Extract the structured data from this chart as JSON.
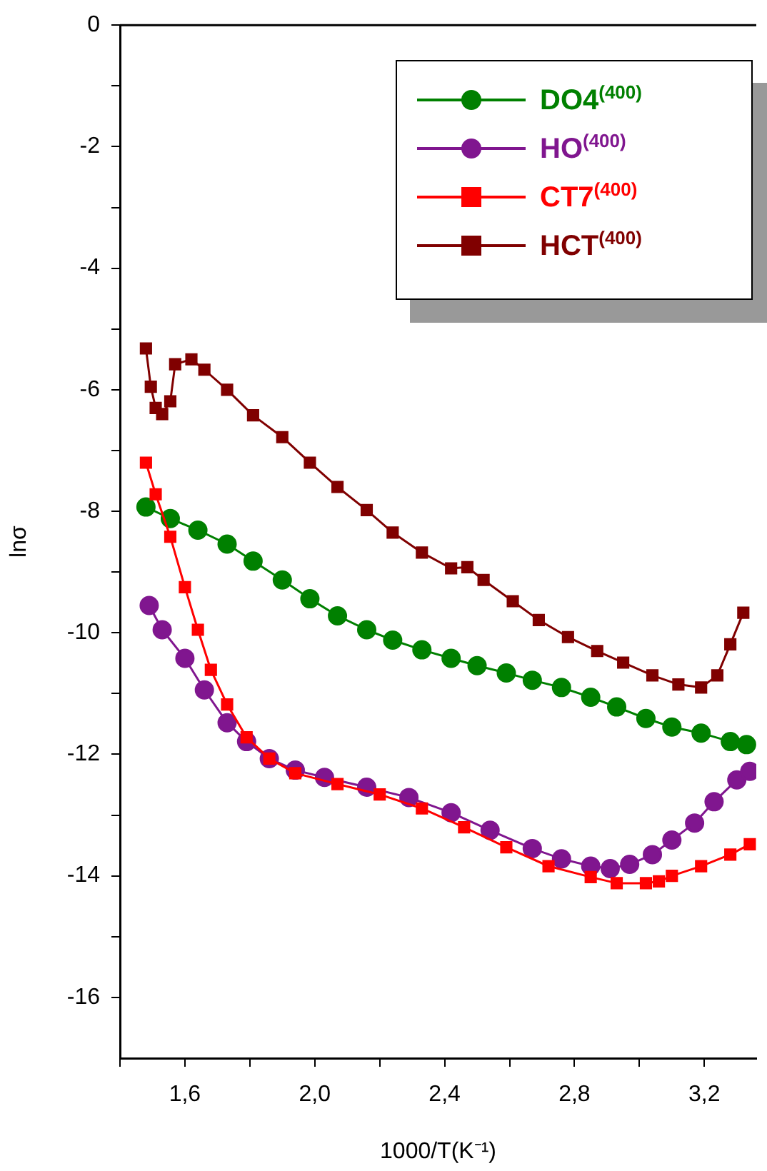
{
  "chart_data": {
    "type": "line",
    "xlabel": "1000/T(K⁻¹)",
    "ylabel": "lnσ",
    "xlim": [
      1.4,
      3.36
    ],
    "ylim": [
      -17,
      0
    ],
    "xticks": [
      {
        "value": 1.4,
        "label": null
      },
      {
        "value": 1.6,
        "label": "1,6"
      },
      {
        "value": 1.8,
        "label": null
      },
      {
        "value": 2.0,
        "label": "2,0"
      },
      {
        "value": 2.2,
        "label": null
      },
      {
        "value": 2.4,
        "label": "2,4"
      },
      {
        "value": 2.6,
        "label": null
      },
      {
        "value": 2.8,
        "label": "2,8"
      },
      {
        "value": 3.0,
        "label": null
      },
      {
        "value": 3.2,
        "label": "3,2"
      }
    ],
    "yticks": [
      0,
      {
        "value": -1,
        "label": null
      },
      -2,
      {
        "value": -3,
        "label": null
      },
      -4,
      {
        "value": -5,
        "label": null
      },
      -6,
      {
        "value": -7,
        "label": null
      },
      -8,
      {
        "value": -9,
        "label": null
      },
      -10,
      {
        "value": -11,
        "label": null
      },
      -12,
      {
        "value": -13,
        "label": null
      },
      -14,
      {
        "value": -15,
        "label": null
      },
      -16
    ],
    "grid": false,
    "legend": "top right",
    "line_style": "solid",
    "series": [
      {
        "name": "DO4$^{(400)}$",
        "color": "#008000",
        "marker": "circle",
        "x": [
          1.48,
          1.555,
          1.64,
          1.73,
          1.81,
          1.9,
          1.985,
          2.07,
          2.16,
          2.24,
          2.33,
          2.42,
          2.5,
          2.59,
          2.67,
          2.76,
          2.85,
          2.93,
          3.02,
          3.1,
          3.19,
          3.28,
          3.33
        ],
        "values": [
          -7.93,
          -8.12,
          -8.31,
          -8.54,
          -8.82,
          -9.13,
          -9.44,
          -9.72,
          -9.95,
          -10.12,
          -10.28,
          -10.42,
          -10.54,
          -10.66,
          -10.78,
          -10.9,
          -11.06,
          -11.22,
          -11.41,
          -11.55,
          -11.65,
          -11.79,
          -11.84
        ]
      },
      {
        "name": "HO$^{(400)}$",
        "color": "#80168f",
        "marker": "circle",
        "x": [
          1.49,
          1.53,
          1.6,
          1.66,
          1.73,
          1.79,
          1.86,
          1.94,
          2.03,
          2.16,
          2.29,
          2.42,
          2.54,
          2.67,
          2.76,
          2.85,
          2.91,
          2.97,
          3.04,
          3.1,
          3.17,
          3.23,
          3.3,
          3.34
        ],
        "values": [
          -9.55,
          -9.95,
          -10.42,
          -10.94,
          -11.48,
          -11.79,
          -12.07,
          -12.26,
          -12.38,
          -12.54,
          -12.71,
          -12.96,
          -13.25,
          -13.55,
          -13.72,
          -13.84,
          -13.88,
          -13.81,
          -13.65,
          -13.41,
          -13.13,
          -12.78,
          -12.42,
          -12.28
        ]
      },
      {
        "name": "CT7$^{(400)}$",
        "color": "#ff0000",
        "marker": "square",
        "x": [
          1.48,
          1.51,
          1.555,
          1.6,
          1.64,
          1.68,
          1.73,
          1.79,
          1.86,
          1.94,
          2.07,
          2.2,
          2.33,
          2.46,
          2.59,
          2.72,
          2.85,
          2.93,
          3.02,
          3.06,
          3.1,
          3.19,
          3.28,
          3.34
        ],
        "values": [
          -7.2,
          -7.72,
          -8.42,
          -9.25,
          -9.95,
          -10.61,
          -11.18,
          -11.72,
          -12.07,
          -12.31,
          -12.49,
          -12.66,
          -12.89,
          -13.2,
          -13.53,
          -13.84,
          -14.02,
          -14.12,
          -14.12,
          -14.09,
          -14.0,
          -13.84,
          -13.65,
          -13.48
        ]
      },
      {
        "name": "HCT$^{(400)}$",
        "color": "#800000",
        "marker": "square",
        "x": [
          1.48,
          1.495,
          1.51,
          1.53,
          1.555,
          1.57,
          1.62,
          1.66,
          1.73,
          1.81,
          1.9,
          1.985,
          2.07,
          2.16,
          2.24,
          2.33,
          2.42,
          2.47,
          2.52,
          2.61,
          2.69,
          2.78,
          2.87,
          2.95,
          3.04,
          3.12,
          3.19,
          3.24,
          3.28,
          3.32
        ],
        "values": [
          -5.32,
          -5.95,
          -6.3,
          -6.4,
          -6.19,
          -5.58,
          -5.5,
          -5.67,
          -6.0,
          -6.42,
          -6.78,
          -7.2,
          -7.6,
          -7.98,
          -8.35,
          -8.68,
          -8.94,
          -8.92,
          -9.13,
          -9.48,
          -9.79,
          -10.07,
          -10.3,
          -10.49,
          -10.7,
          -10.85,
          -10.9,
          -10.7,
          -10.19,
          -9.67
        ]
      }
    ]
  }
}
